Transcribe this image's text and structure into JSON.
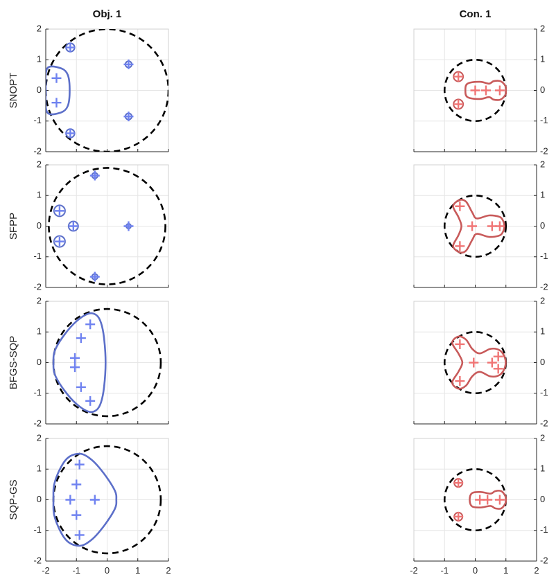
{
  "chart_data": {
    "type": "scatter",
    "columns": [
      {
        "title": "Obj. 1",
        "color": "#5c6fc9",
        "marker_color": "#6f82f0",
        "ytick_side": "left"
      },
      {
        "title": "Con. 1",
        "color": "#c85a5a",
        "marker_color": "#f07575",
        "ytick_side": "right"
      }
    ],
    "rows": [
      "SNOPT",
      "SFPP",
      "BFGS-SQP",
      "SQP-GS"
    ],
    "xlim": [
      -2,
      2
    ],
    "ylim": [
      -2,
      2
    ],
    "xticks": [
      -2,
      -1,
      0,
      1,
      2
    ],
    "yticks": [
      -2,
      -1,
      0,
      1,
      2
    ],
    "grid": true,
    "reference_circle_style": "dashed black",
    "panels": [
      {
        "row": "SNOPT",
        "col": "Obj. 1",
        "circle": {
          "center": [
            0,
            0
          ],
          "radius": 2.0
        },
        "points": [
          [
            -1.2,
            1.4
          ],
          [
            -1.2,
            -1.4
          ],
          [
            0.7,
            0.85
          ],
          [
            0.7,
            -0.85
          ],
          [
            -1.65,
            0.4
          ],
          [
            -1.65,
            -0.4
          ]
        ],
        "blob_sigma": 0.09,
        "blobs": [
          {
            "center": [
              -1.2,
              1.4
            ],
            "radius": 0.18
          },
          {
            "center": [
              -1.2,
              -1.4
            ],
            "radius": 0.18
          },
          {
            "center": [
              0.7,
              0.85
            ],
            "radius": 0.15
          },
          {
            "center": [
              0.7,
              -0.85
            ],
            "radius": 0.15
          }
        ],
        "regions": [
          [
            [
              -1.95,
              0.72
            ],
            [
              -1.5,
              0.72
            ],
            [
              -1.28,
              0.5
            ],
            [
              -1.22,
              0
            ],
            [
              -1.28,
              -0.5
            ],
            [
              -1.5,
              -0.72
            ],
            [
              -1.95,
              -0.72
            ],
            [
              -2.0,
              0
            ]
          ]
        ]
      },
      {
        "row": "SFPP",
        "col": "Obj. 1",
        "circle": {
          "center": [
            0,
            0
          ],
          "radius": 1.9
        },
        "points": [
          [
            -0.4,
            1.65
          ],
          [
            -0.4,
            -1.65
          ],
          [
            0.7,
            0
          ],
          [
            -1.55,
            0.5
          ],
          [
            -1.55,
            -0.5
          ],
          [
            -1.1,
            0
          ]
        ],
        "blob_sigma": 0.1,
        "blobs": [
          {
            "center": [
              -1.55,
              0.5
            ],
            "radius": 0.22
          },
          {
            "center": [
              -1.55,
              -0.5
            ],
            "radius": 0.22
          },
          {
            "center": [
              -1.1,
              0
            ],
            "radius": 0.2
          },
          {
            "center": [
              -0.4,
              1.65
            ],
            "radius": 0.15
          },
          {
            "center": [
              -0.4,
              -1.65
            ],
            "radius": 0.15
          },
          {
            "center": [
              0.7,
              0
            ],
            "radius": 0.14
          }
        ]
      },
      {
        "row": "BFGS-SQP",
        "col": "Obj. 1",
        "circle": {
          "center": [
            0,
            0
          ],
          "radius": 1.75
        },
        "points": [
          [
            -0.55,
            1.25
          ],
          [
            -0.85,
            0.8
          ],
          [
            -1.05,
            0.15
          ],
          [
            -1.05,
            -0.15
          ],
          [
            -0.85,
            -0.8
          ],
          [
            -0.55,
            -1.25
          ]
        ],
        "regions": [
          [
            [
              -0.6,
              1.6
            ],
            [
              -0.35,
              1.55
            ],
            [
              -0.2,
              1.3
            ],
            [
              -0.1,
              0.8
            ],
            [
              -0.05,
              0
            ],
            [
              -0.1,
              -0.8
            ],
            [
              -0.2,
              -1.3
            ],
            [
              -0.35,
              -1.55
            ],
            [
              -0.6,
              -1.6
            ],
            [
              -1.0,
              -1.35
            ],
            [
              -1.4,
              -0.9
            ],
            [
              -1.7,
              -0.4
            ],
            [
              -1.75,
              0
            ],
            [
              -1.7,
              0.4
            ],
            [
              -1.4,
              0.9
            ],
            [
              -1.0,
              1.35
            ]
          ]
        ]
      },
      {
        "row": "SQP-GS",
        "col": "Obj. 1",
        "circle": {
          "center": [
            0,
            0
          ],
          "radius": 1.75
        },
        "points": [
          [
            -0.9,
            1.15
          ],
          [
            -1.0,
            0.5
          ],
          [
            -1.2,
            0
          ],
          [
            -0.4,
            0
          ],
          [
            -1.0,
            -0.5
          ],
          [
            -0.9,
            -1.15
          ]
        ],
        "regions": [
          [
            [
              -0.9,
              1.5
            ],
            [
              -0.5,
              1.3
            ],
            [
              -0.1,
              0.85
            ],
            [
              0.25,
              0.3
            ],
            [
              0.3,
              0
            ],
            [
              0.25,
              -0.3
            ],
            [
              -0.1,
              -0.85
            ],
            [
              -0.5,
              -1.3
            ],
            [
              -0.9,
              -1.5
            ],
            [
              -1.35,
              -1.3
            ],
            [
              -1.7,
              -0.6
            ],
            [
              -1.75,
              0
            ],
            [
              -1.7,
              0.6
            ],
            [
              -1.35,
              1.3
            ]
          ]
        ]
      },
      {
        "row": "SNOPT",
        "col": "Con. 1",
        "circle": {
          "center": [
            0,
            0
          ],
          "radius": 1.0
        },
        "points": [
          [
            -0.55,
            0.45
          ],
          [
            -0.55,
            -0.45
          ],
          [
            0,
            0
          ],
          [
            0.35,
            0
          ],
          [
            0.8,
            0
          ]
        ],
        "blob_sigma": 0.08,
        "blobs": [
          {
            "center": [
              -0.55,
              0.45
            ],
            "radius": 0.19
          },
          {
            "center": [
              -0.55,
              -0.45
            ],
            "radius": 0.19
          }
        ],
        "regions": [
          [
            [
              -0.25,
              0.22
            ],
            [
              0.15,
              0.28
            ],
            [
              0.45,
              0.22
            ],
            [
              0.6,
              0.3
            ],
            [
              0.82,
              0.3
            ],
            [
              0.98,
              0.15
            ],
            [
              1.0,
              0
            ],
            [
              0.98,
              -0.15
            ],
            [
              0.82,
              -0.3
            ],
            [
              0.6,
              -0.3
            ],
            [
              0.45,
              -0.22
            ],
            [
              0.15,
              -0.28
            ],
            [
              -0.25,
              -0.22
            ],
            [
              -0.32,
              0
            ]
          ]
        ]
      },
      {
        "row": "SFPP",
        "col": "Con. 1",
        "circle": {
          "center": [
            0,
            0
          ],
          "radius": 1.0
        },
        "points": [
          [
            -0.5,
            0.65
          ],
          [
            -0.5,
            -0.65
          ],
          [
            -0.1,
            0
          ],
          [
            0.55,
            0
          ],
          [
            0.8,
            0
          ]
        ],
        "regions": [
          [
            [
              -0.52,
              0.85
            ],
            [
              -0.3,
              0.8
            ],
            [
              -0.1,
              0.45
            ],
            [
              0.05,
              0.25
            ],
            [
              0.45,
              0.35
            ],
            [
              0.8,
              0.3
            ],
            [
              0.92,
              0.15
            ],
            [
              0.95,
              0
            ],
            [
              0.92,
              -0.15
            ],
            [
              0.8,
              -0.3
            ],
            [
              0.45,
              -0.35
            ],
            [
              0.05,
              -0.25
            ],
            [
              -0.1,
              -0.45
            ],
            [
              -0.3,
              -0.8
            ],
            [
              -0.52,
              -0.85
            ],
            [
              -0.72,
              -0.65
            ],
            [
              -0.55,
              -0.3
            ],
            [
              -0.45,
              0
            ],
            [
              -0.55,
              0.3
            ],
            [
              -0.72,
              0.65
            ]
          ]
        ]
      },
      {
        "row": "BFGS-SQP",
        "col": "Con. 1",
        "circle": {
          "center": [
            0,
            0
          ],
          "radius": 1.0
        },
        "points": [
          [
            -0.5,
            0.6
          ],
          [
            -0.5,
            -0.6
          ],
          [
            -0.05,
            0
          ],
          [
            0.55,
            0
          ],
          [
            0.75,
            0.2
          ],
          [
            0.75,
            -0.2
          ]
        ],
        "regions": [
          [
            [
              -0.55,
              0.85
            ],
            [
              -0.3,
              0.75
            ],
            [
              -0.1,
              0.45
            ],
            [
              0.15,
              0.3
            ],
            [
              0.5,
              0.45
            ],
            [
              0.8,
              0.4
            ],
            [
              0.97,
              0.15
            ],
            [
              0.97,
              -0.15
            ],
            [
              0.8,
              -0.4
            ],
            [
              0.5,
              -0.45
            ],
            [
              0.15,
              -0.3
            ],
            [
              -0.1,
              -0.45
            ],
            [
              -0.3,
              -0.75
            ],
            [
              -0.55,
              -0.85
            ],
            [
              -0.75,
              -0.65
            ],
            [
              -0.55,
              -0.3
            ],
            [
              -0.42,
              0
            ],
            [
              -0.55,
              0.3
            ],
            [
              -0.75,
              0.65
            ]
          ]
        ]
      },
      {
        "row": "SQP-GS",
        "col": "Con. 1",
        "circle": {
          "center": [
            0,
            0
          ],
          "radius": 1.0
        },
        "points": [
          [
            -0.55,
            0.55
          ],
          [
            -0.55,
            -0.55
          ],
          [
            0.15,
            0
          ],
          [
            0.4,
            0
          ],
          [
            0.8,
            0
          ]
        ],
        "blob_sigma": 0.08,
        "blobs": [
          {
            "center": [
              -0.55,
              0.55
            ],
            "radius": 0.17
          },
          {
            "center": [
              -0.55,
              -0.55
            ],
            "radius": 0.17
          }
        ],
        "regions": [
          [
            [
              -0.1,
              0.22
            ],
            [
              0.2,
              0.25
            ],
            [
              0.5,
              0.2
            ],
            [
              0.65,
              0.28
            ],
            [
              0.85,
              0.28
            ],
            [
              0.98,
              0.12
            ],
            [
              1.0,
              0
            ],
            [
              0.98,
              -0.12
            ],
            [
              0.85,
              -0.28
            ],
            [
              0.65,
              -0.28
            ],
            [
              0.5,
              -0.2
            ],
            [
              0.2,
              -0.25
            ],
            [
              -0.1,
              -0.22
            ],
            [
              -0.18,
              0
            ]
          ]
        ]
      }
    ]
  }
}
